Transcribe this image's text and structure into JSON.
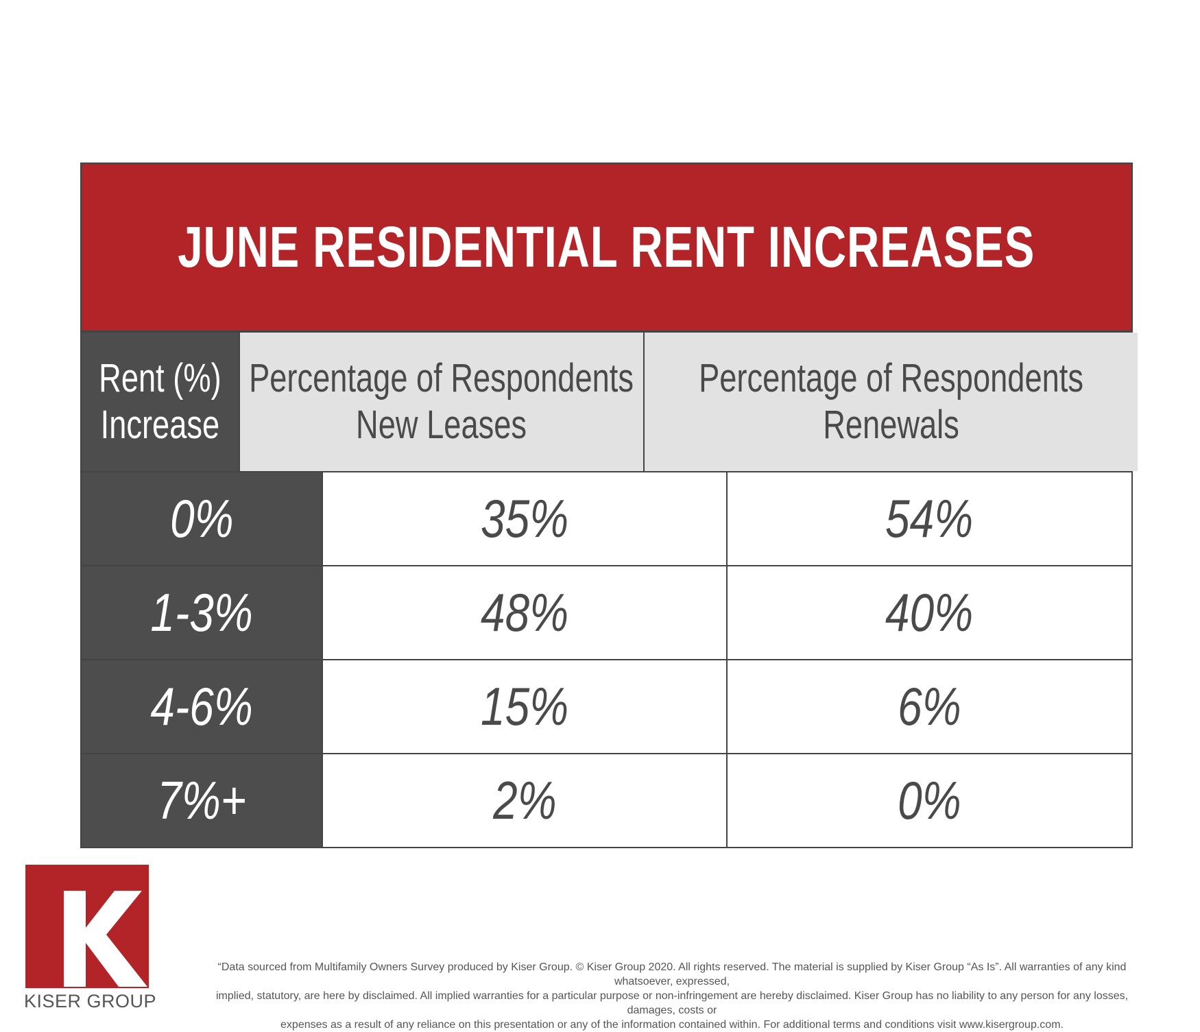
{
  "chart_data": {
    "type": "table",
    "title": "JUNE RESIDENTIAL RENT INCREASES",
    "columns": [
      {
        "line1": "Rent (%)",
        "line2": "Increase"
      },
      {
        "line1": "Percentage of Respondents",
        "line2": "New Leases"
      },
      {
        "line1": "Percentage of Respondents",
        "line2": "Renewals"
      }
    ],
    "rows": [
      {
        "category": "0%",
        "new_leases": "35%",
        "renewals": "54%"
      },
      {
        "category": "1-3%",
        "new_leases": "48%",
        "renewals": "40%"
      },
      {
        "category": "4-6%",
        "new_leases": "15%",
        "renewals": "6%"
      },
      {
        "category": "7%+",
        "new_leases": "2%",
        "renewals": "0%"
      }
    ]
  },
  "brand": {
    "logo_letter": "K",
    "name": "KISER GROUP",
    "color": "#b22427"
  },
  "disclaimer": {
    "line1": "“Data sourced from Multifamily Owners Survey produced by Kiser Group. © Kiser Group 2020. All rights reserved. The material is supplied by Kiser Group “As Is”. All warranties of any kind whatsoever, expressed,",
    "line2": "implied, statutory, are here by disclaimed. All implied warranties for a particular purpose or non-infringement are hereby disclaimed. Kiser Group has no liability to any person for any losses, damages, costs or",
    "line3": "expenses as a result of any reliance on this presentation or any of the information contained within. For additional terms and conditions visit www.kisergroup.com."
  }
}
